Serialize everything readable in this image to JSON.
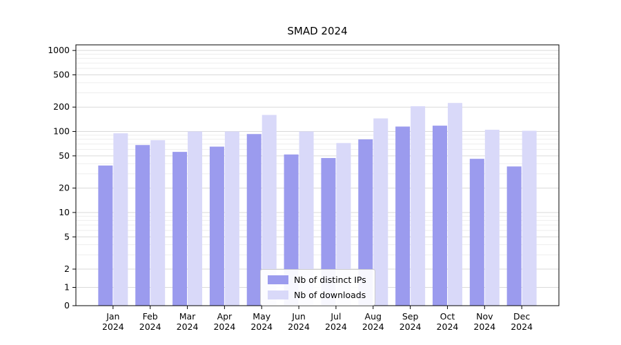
{
  "chart_data": {
    "type": "bar",
    "title": "SMAD 2024",
    "months": [
      "Jan",
      "Feb",
      "Mar",
      "Apr",
      "May",
      "Jun",
      "Jul",
      "Aug",
      "Sep",
      "Oct",
      "Nov",
      "Dec"
    ],
    "year_label": "2024",
    "series": [
      {
        "name": "Nb of distinct IPs",
        "color": "#9b9bee",
        "values": [
          38,
          68,
          56,
          65,
          93,
          52,
          47,
          80,
          115,
          118,
          46,
          37
        ]
      },
      {
        "name": "Nb of downloads",
        "color": "#d9d9f9",
        "values": [
          95,
          78,
          100,
          100,
          160,
          100,
          72,
          145,
          205,
          225,
          105,
          102
        ]
      }
    ],
    "y_axis": {
      "scale": "symlog",
      "ticks": [
        0,
        1,
        2,
        5,
        10,
        20,
        50,
        100,
        200,
        500,
        1000
      ],
      "minor_ticks": [
        3,
        4,
        6,
        7,
        8,
        9,
        30,
        40,
        60,
        70,
        80,
        90,
        300,
        400,
        600,
        700,
        800,
        900
      ],
      "ylim": [
        0,
        1000
      ]
    },
    "legend_position": "lower center",
    "grid": "horizontal",
    "colors": {
      "major_gridline": "#d9d9d9",
      "minor_gridline": "#ededed",
      "axis": "#000000"
    }
  }
}
